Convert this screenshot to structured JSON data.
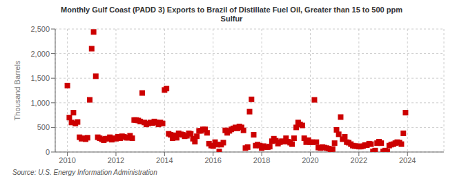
{
  "chart_data": {
    "type": "scatter",
    "title": "Monthly Gulf Coast (PADD 3) Exports to Brazil of Distillate Fuel Oil, Greater than 15 to 500 ppm\nSulfur",
    "ylabel": "Thousand Barrels",
    "source": "Source: U.S. Energy Information Administration",
    "color": "#cc0000",
    "marker": "square",
    "grid": true,
    "xlim": [
      2009.5,
      2025.5
    ],
    "xticks": [
      2010,
      2012,
      2014,
      2016,
      2018,
      2020,
      2022,
      2024
    ],
    "ylim": [
      0,
      2500
    ],
    "yticks": [
      0,
      500,
      {
        "value": 1000,
        "label": "1,000"
      },
      {
        "value": 1500,
        "label": "1,500"
      },
      {
        "value": 2000,
        "label": "2,000"
      },
      {
        "value": 2500,
        "label": "2,500"
      }
    ],
    "x": [
      2010.0,
      2010.08,
      2010.17,
      2010.25,
      2010.33,
      2010.42,
      2010.5,
      2010.58,
      2010.67,
      2010.75,
      2010.83,
      2010.92,
      2011.0,
      2011.08,
      2011.17,
      2011.25,
      2011.33,
      2011.42,
      2011.5,
      2011.58,
      2011.67,
      2011.75,
      2011.83,
      2011.92,
      2012.0,
      2012.08,
      2012.17,
      2012.25,
      2012.33,
      2012.42,
      2012.5,
      2012.58,
      2012.67,
      2012.75,
      2012.83,
      2012.92,
      2013.0,
      2013.08,
      2013.17,
      2013.25,
      2013.33,
      2013.42,
      2013.5,
      2013.58,
      2013.67,
      2013.75,
      2013.83,
      2013.92,
      2014.0,
      2014.08,
      2014.17,
      2014.25,
      2014.33,
      2014.42,
      2014.5,
      2014.58,
      2014.67,
      2014.75,
      2014.83,
      2014.92,
      2015.0,
      2015.08,
      2015.17,
      2015.25,
      2015.33,
      2015.42,
      2015.5,
      2015.58,
      2015.67,
      2015.75,
      2015.83,
      2015.92,
      2016.0,
      2016.08,
      2016.17,
      2016.25,
      2016.33,
      2016.42,
      2016.5,
      2016.58,
      2016.67,
      2016.75,
      2016.83,
      2016.92,
      2017.0,
      2017.08,
      2017.17,
      2017.25,
      2017.33,
      2017.42,
      2017.5,
      2017.58,
      2017.67,
      2017.75,
      2017.83,
      2017.92,
      2018.0,
      2018.08,
      2018.17,
      2018.25,
      2018.33,
      2018.42,
      2018.5,
      2018.58,
      2018.67,
      2018.75,
      2018.83,
      2018.92,
      2019.0,
      2019.08,
      2019.17,
      2019.25,
      2019.33,
      2019.42,
      2019.5,
      2019.58,
      2019.67,
      2019.75,
      2019.83,
      2019.92,
      2020.0,
      2020.08,
      2020.17,
      2020.25,
      2020.33,
      2020.42,
      2020.5,
      2020.58,
      2020.67,
      2020.75,
      2020.83,
      2020.92,
      2021.0,
      2021.08,
      2021.17,
      2021.25,
      2021.33,
      2021.42,
      2021.5,
      2021.58,
      2021.67,
      2021.75,
      2021.83,
      2021.92,
      2022.0,
      2022.08,
      2022.17,
      2022.25,
      2022.33,
      2022.42,
      2022.5,
      2022.58,
      2022.67,
      2022.75,
      2022.83,
      2022.92,
      2023.0,
      2023.08,
      2023.17,
      2023.25,
      2023.33,
      2023.42,
      2023.5,
      2023.58,
      2023.67,
      2023.75,
      2023.83,
      2023.92
    ],
    "values": [
      1350,
      700,
      600,
      800,
      580,
      610,
      300,
      270,
      280,
      260,
      290,
      1060,
      2100,
      2440,
      1540,
      300,
      280,
      260,
      240,
      270,
      270,
      300,
      250,
      280,
      270,
      310,
      280,
      320,
      310,
      290,
      290,
      330,
      280,
      650,
      650,
      640,
      620,
      1200,
      600,
      560,
      580,
      600,
      590,
      620,
      600,
      560,
      600,
      580,
      1260,
      1290,
      370,
      350,
      280,
      340,
      290,
      380,
      360,
      350,
      320,
      330,
      380,
      370,
      270,
      210,
      320,
      430,
      430,
      460,
      460,
      390,
      170,
      130,
      120,
      200,
      150,
      10,
      150,
      190,
      440,
      390,
      430,
      460,
      480,
      500,
      480,
      520,
      500,
      440,
      80,
      100,
      820,
      1070,
      350,
      130,
      150,
      130,
      80,
      120,
      100,
      100,
      110,
      220,
      270,
      230,
      170,
      200,
      220,
      210,
      280,
      210,
      190,
      160,
      280,
      500,
      600,
      560,
      540,
      280,
      200,
      240,
      200,
      200,
      1060,
      200,
      90,
      80,
      100,
      90,
      80,
      70,
      10,
      60,
      180,
      450,
      360,
      710,
      260,
      310,
      200,
      190,
      160,
      130,
      120,
      120,
      110,
      110,
      120,
      140,
      140,
      170,
      160,
      10,
      30,
      180,
      210,
      180,
      10,
      30,
      10,
      130,
      150,
      160,
      180,
      200,
      190,
      160,
      380,
      800
    ]
  }
}
